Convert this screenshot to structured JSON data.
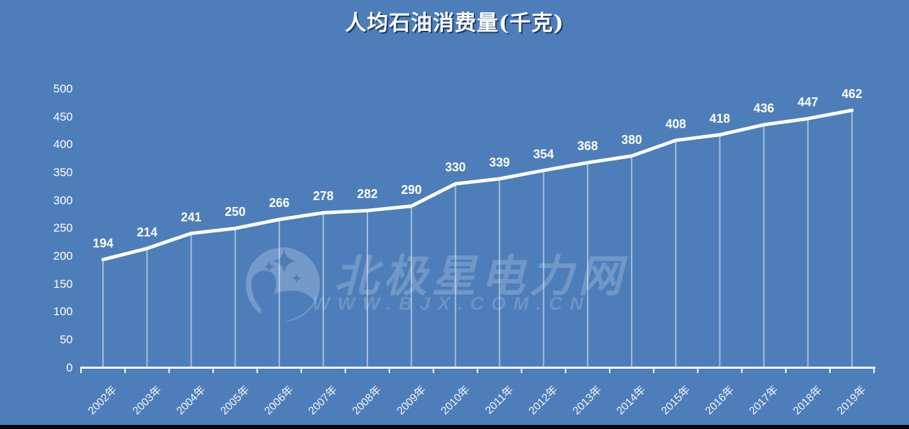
{
  "title": {
    "text": "人均石油消费量(千克)"
  },
  "watermark": {
    "brand": "北极星电力网",
    "url": "WWW.BJX.COM.CN"
  },
  "chart_data": {
    "type": "line",
    "title": "人均石油消费量(千克)",
    "categories": [
      "2002年",
      "2003年",
      "2004年",
      "2005年",
      "2006年",
      "2007年",
      "2008年",
      "2009年",
      "2010年",
      "2011年",
      "2012年",
      "2013年",
      "2014年",
      "2015年",
      "2016年",
      "2017年",
      "2018年",
      "2019年"
    ],
    "values": [
      194,
      214,
      241,
      250,
      266,
      278,
      282,
      290,
      330,
      339,
      354,
      368,
      380,
      408,
      418,
      436,
      447,
      462
    ],
    "data_labels_shown": true,
    "xlabel": "",
    "ylabel": "",
    "ylim": [
      0,
      500
    ],
    "yticks": [
      0,
      50,
      100,
      150,
      200,
      250,
      300,
      350,
      400,
      450,
      500
    ],
    "grid": "off",
    "legend": "none",
    "x_tick_rotation_deg": -45,
    "colors": {
      "background": "#4d7eba",
      "series_line": "#ffffff",
      "drop_lines": "rgba(255,255,255,0.5)",
      "axis": "#ffffff",
      "labels": "#ffffff",
      "title_text": "#ffffff",
      "title_shadow": "#1e3a66",
      "watermark": "rgba(255,255,255,0.20)"
    }
  }
}
